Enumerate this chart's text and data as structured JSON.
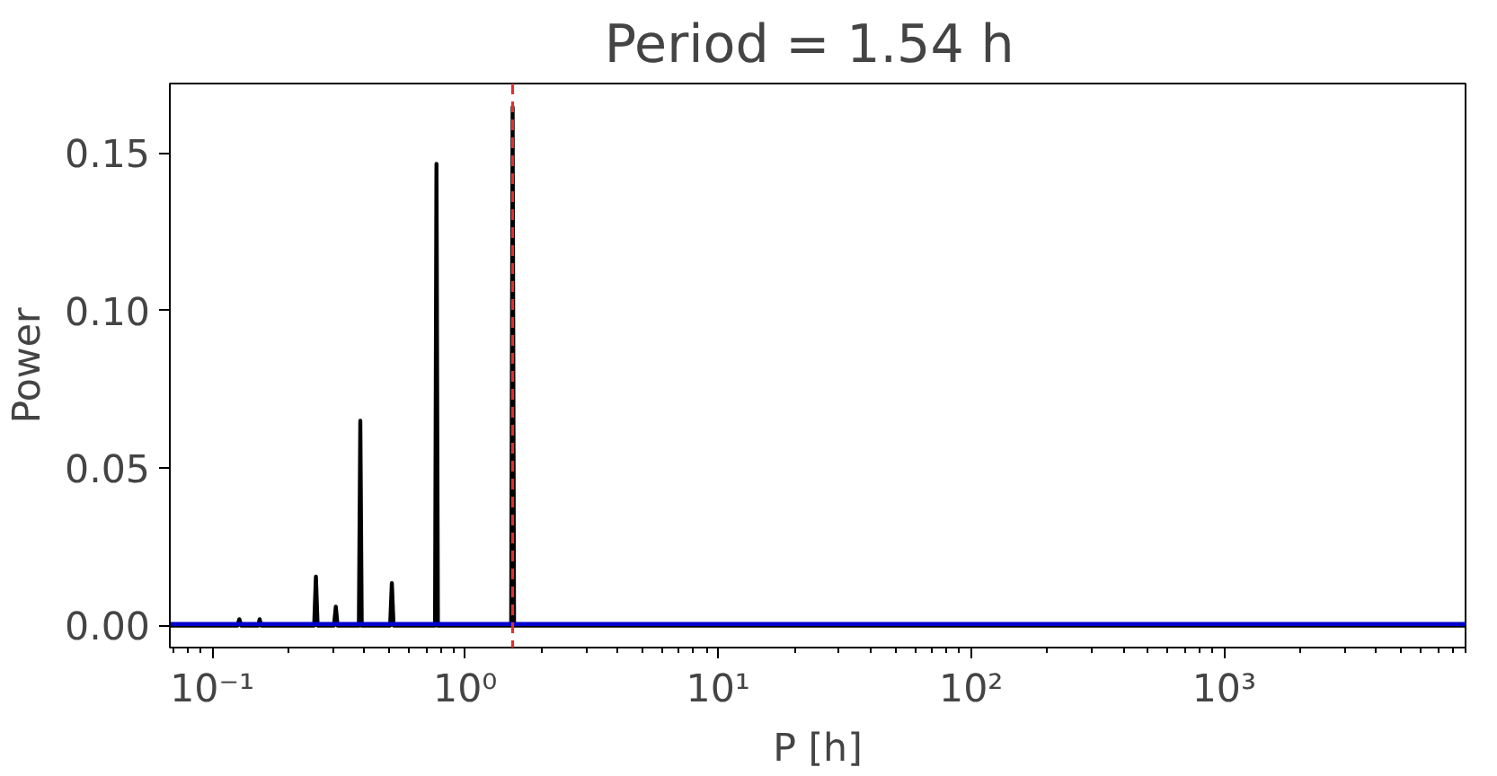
{
  "chart_data": {
    "type": "line",
    "title": "Period =  1.54 h",
    "xlabel": "P [h]",
    "ylabel": "Power",
    "log": "x",
    "grid": false,
    "marker": "none",
    "line_style": "solid",
    "xlim": [
      0.068,
      9000
    ],
    "ylim": [
      -0.007,
      0.172
    ],
    "xticks": [
      {
        "value": 0.1,
        "label": "10⁻¹"
      },
      {
        "value": 1,
        "label": "10⁰"
      },
      {
        "value": 10,
        "label": "10¹"
      },
      {
        "value": 100,
        "label": "10²"
      },
      {
        "value": 1000,
        "label": "10³"
      }
    ],
    "yticks": [
      {
        "value": 0,
        "label": "0.00"
      },
      {
        "value": 0.05,
        "label": "0.05"
      },
      {
        "value": 0.1,
        "label": "0.10"
      },
      {
        "value": 0.15,
        "label": "0.15"
      }
    ],
    "series": [
      {
        "color": "#000000",
        "x": [
          0.068,
          0.126,
          0.128,
          0.13,
          0.152,
          0.154,
          0.156,
          0.253,
          0.257,
          0.261,
          0.303,
          0.308,
          0.313,
          0.38,
          0.385,
          0.39,
          0.505,
          0.513,
          0.521,
          0.76,
          0.77,
          0.78,
          1.52,
          1.54,
          1.56,
          9000
        ],
        "values": [
          0,
          0,
          0.002,
          0,
          0,
          0.002,
          0,
          0,
          0.0155,
          0,
          0,
          0.006,
          0,
          0,
          0.065,
          0,
          0,
          0.0135,
          0,
          0,
          0.1465,
          0,
          0,
          0.1645,
          0,
          0
        ]
      },
      {
        "color": "#0000cc",
        "x": [
          0.068,
          9000
        ],
        "values": [
          0.0005,
          0.0005
        ]
      }
    ],
    "ref_lines": [
      {
        "axis": "x",
        "value": 1.54,
        "color": "#e03030",
        "line_style": "dashed"
      }
    ]
  }
}
